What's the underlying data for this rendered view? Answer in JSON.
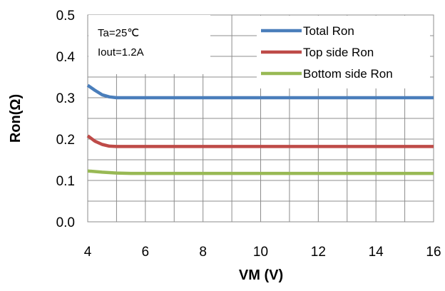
{
  "chart_data": {
    "type": "line",
    "xlabel": "VM (V)",
    "ylabel": "Ron(Ω)",
    "xlim": [
      4,
      16
    ],
    "ylim": [
      0.0,
      0.5
    ],
    "x_ticks": [
      "4",
      "6",
      "8",
      "10",
      "12",
      "14",
      "16"
    ],
    "y_ticks": [
      "0.0",
      "0.1",
      "0.2",
      "0.3",
      "0.4",
      "0.5"
    ],
    "grid": true,
    "legend_position": "top-right",
    "annotations": [
      "Ta=25℃",
      "Iout=1.2A"
    ],
    "series": [
      {
        "name": "Total Ron",
        "color": "#4a7ebb",
        "x": [
          4,
          4.25,
          4.5,
          4.75,
          5,
          5.5,
          6,
          8,
          10,
          12,
          14,
          16
        ],
        "values": [
          0.33,
          0.318,
          0.307,
          0.302,
          0.3,
          0.3,
          0.3,
          0.3,
          0.3,
          0.3,
          0.3,
          0.3
        ]
      },
      {
        "name": "Top side Ron",
        "color": "#be4b48",
        "x": [
          4,
          4.25,
          4.5,
          4.75,
          5,
          5.5,
          6,
          8,
          10,
          12,
          14,
          16
        ],
        "values": [
          0.208,
          0.195,
          0.187,
          0.183,
          0.182,
          0.182,
          0.182,
          0.182,
          0.182,
          0.182,
          0.182,
          0.182
        ]
      },
      {
        "name": "Bottom side Ron",
        "color": "#98b954",
        "x": [
          4,
          4.5,
          5,
          5.5,
          6,
          8,
          10,
          12,
          14,
          16
        ],
        "values": [
          0.123,
          0.12,
          0.118,
          0.117,
          0.117,
          0.117,
          0.117,
          0.117,
          0.117,
          0.117
        ]
      }
    ]
  }
}
